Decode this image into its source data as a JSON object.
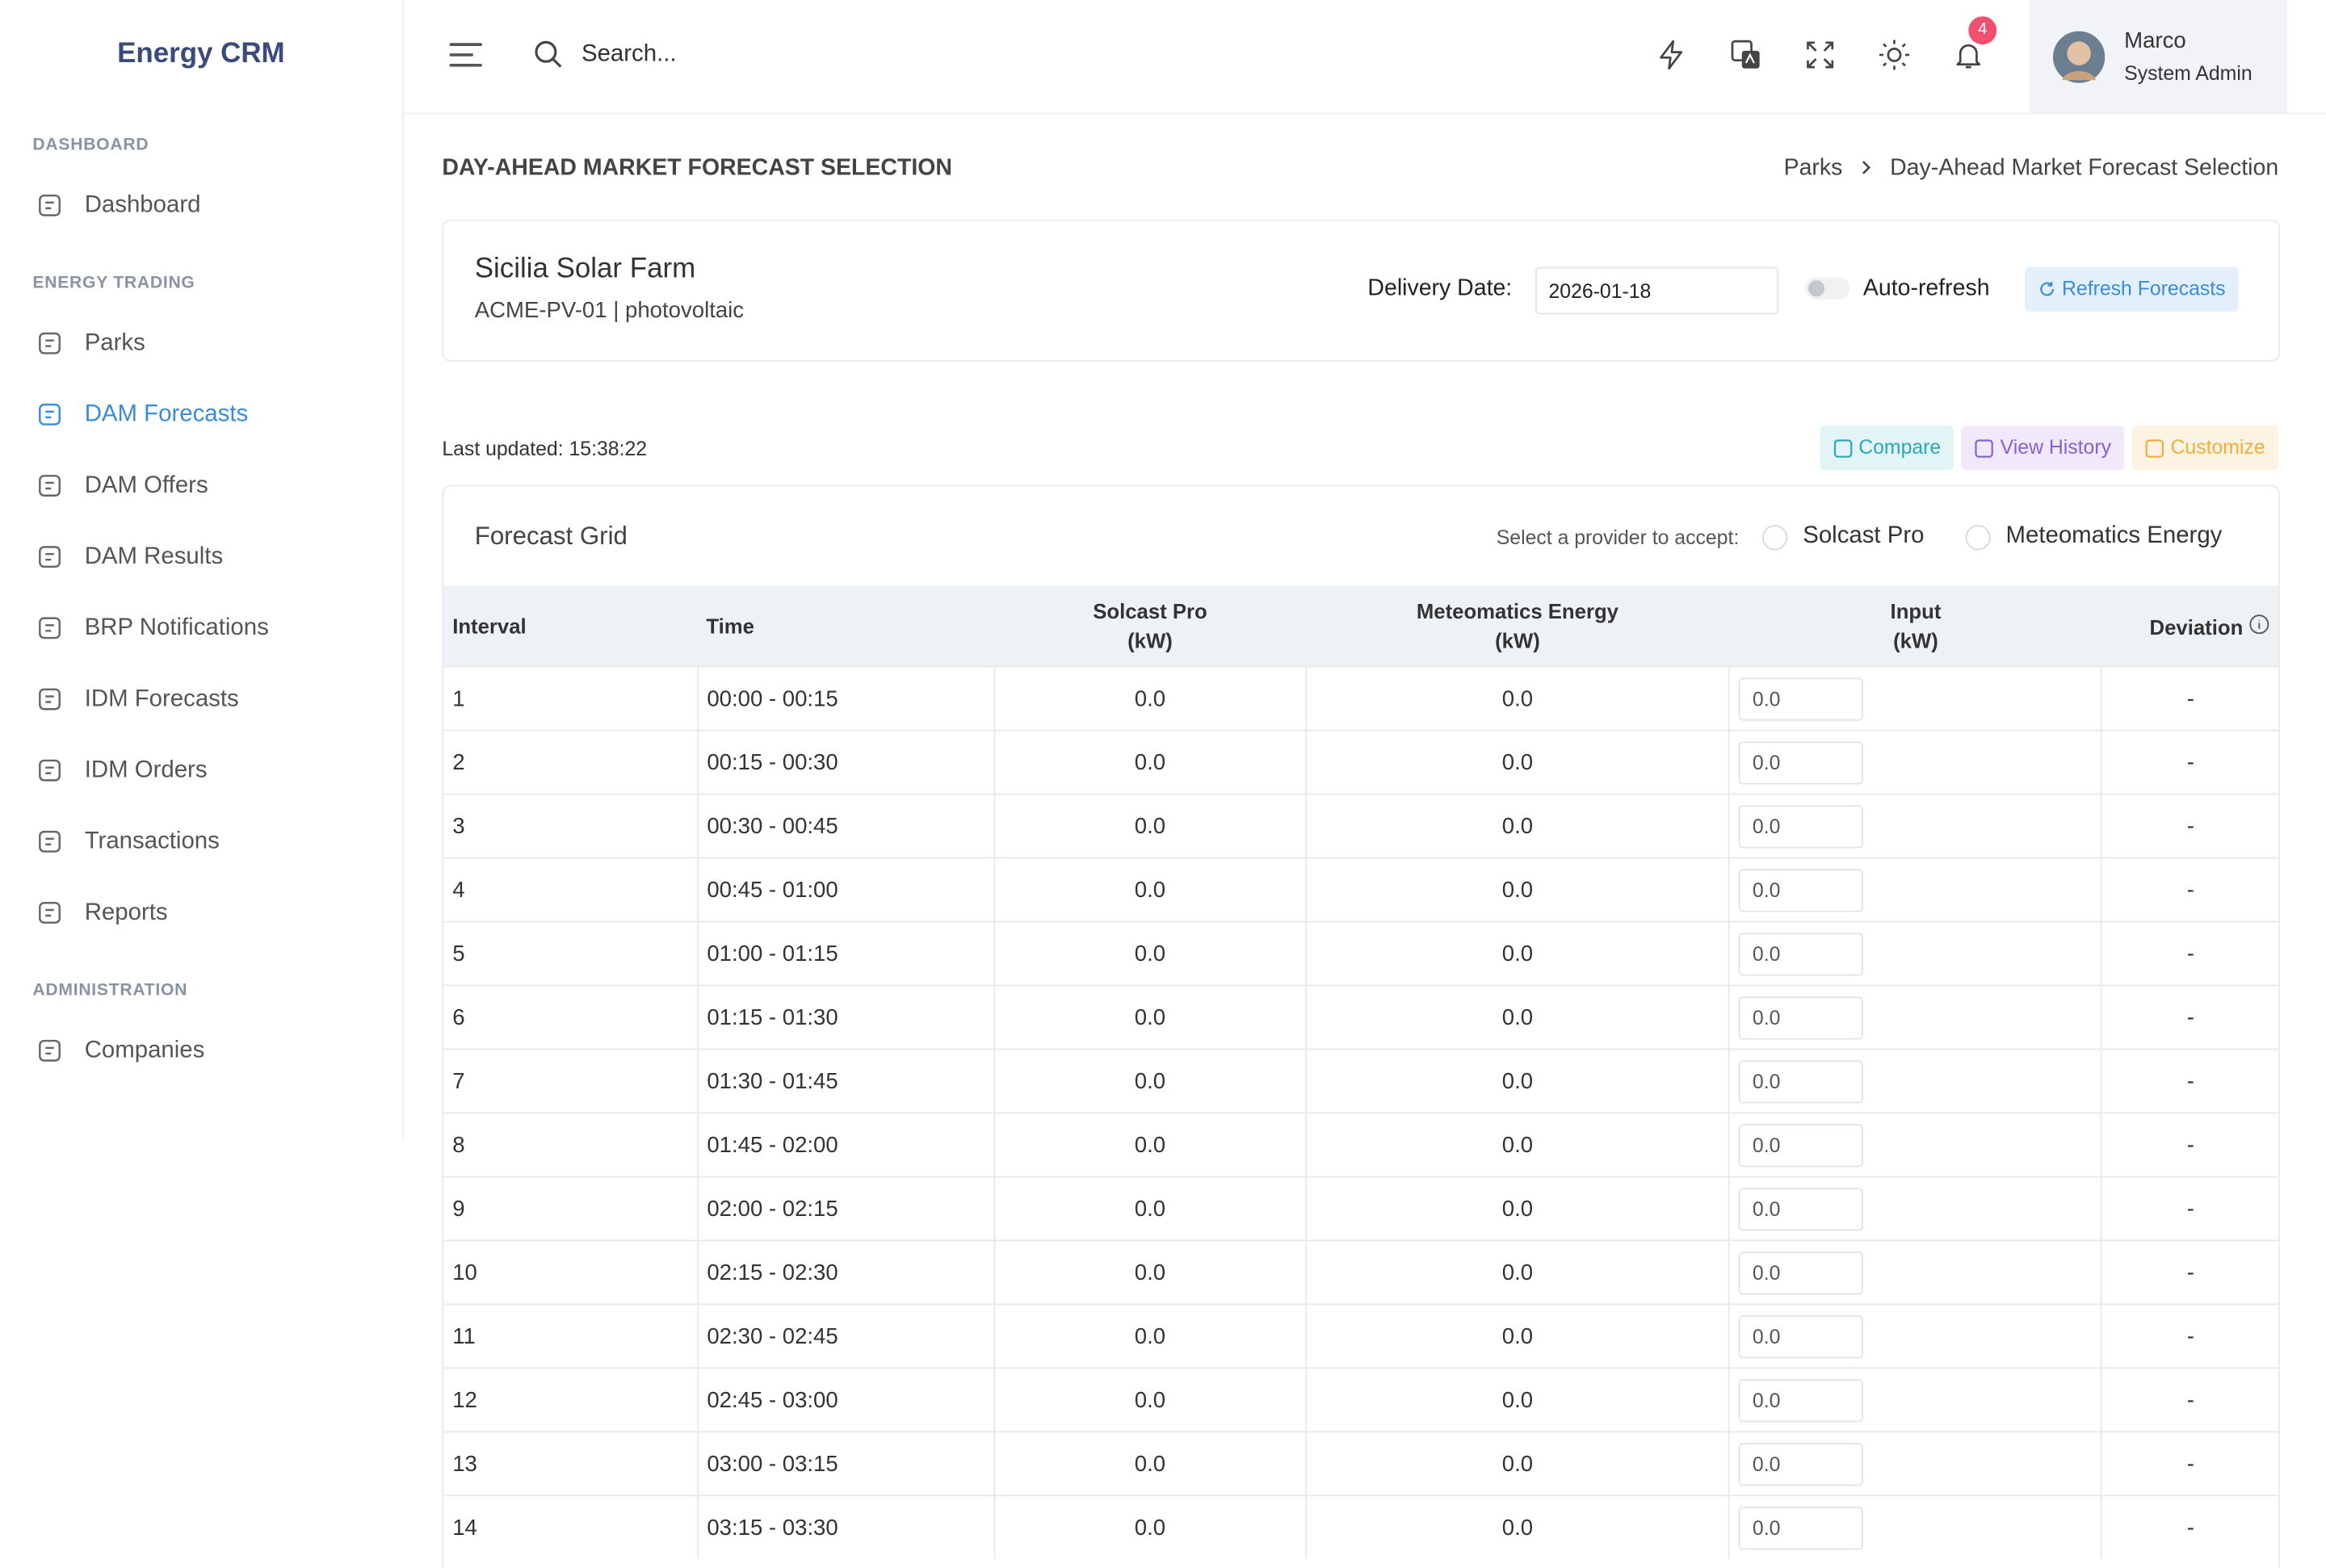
{
  "brand": "Energy CRM",
  "sidebar": {
    "sections": [
      {
        "title": "DASHBOARD",
        "items": [
          {
            "label": "Dashboard"
          }
        ]
      },
      {
        "title": "ENERGY TRADING",
        "items": [
          {
            "label": "Parks"
          },
          {
            "label": "DAM Forecasts",
            "active": true
          },
          {
            "label": "DAM Offers"
          },
          {
            "label": "DAM Results"
          },
          {
            "label": "BRP Notifications"
          },
          {
            "label": "IDM Forecasts"
          },
          {
            "label": "IDM Orders"
          },
          {
            "label": "Transactions"
          },
          {
            "label": "Reports"
          }
        ]
      },
      {
        "title": "ADMINISTRATION",
        "items": [
          {
            "label": "Companies"
          }
        ]
      }
    ]
  },
  "topbar": {
    "search_placeholder": "Search...",
    "notification_count": 4,
    "user": {
      "name": "Marco",
      "role": "System Admin"
    }
  },
  "page": {
    "title": "DAY-AHEAD MARKET FORECAST SELECTION",
    "breadcrumbs": [
      "Parks",
      "Day-Ahead Market Forecast Selection"
    ]
  },
  "park": {
    "name": "Sicilia Solar Farm",
    "subtitle": "ACME-PV-01 | photovoltaic",
    "delivery_date_label": "Delivery Date:",
    "delivery_date": "2026-01-18",
    "auto_refresh_label": "Auto-refresh",
    "refresh_button": "Refresh Forecasts"
  },
  "last_updated": "Last updated: 15:38:22",
  "actions": [
    "Compare",
    "View History",
    "Customize"
  ],
  "grid": {
    "title": "Forecast Grid",
    "provider_prompt": "Select a provider to accept:",
    "providers": [
      "Solcast Pro",
      "Meteomatics Energy"
    ],
    "columns": [
      {
        "label": "Interval"
      },
      {
        "label": "Time"
      },
      {
        "label": "Solcast Pro",
        "unit": "(kW)"
      },
      {
        "label": "Meteomatics Energy",
        "unit": "(kW)"
      },
      {
        "label": "Input",
        "unit": "(kW)"
      },
      {
        "label": "Deviation"
      }
    ],
    "rows": [
      [
        1,
        "00:00 - 00:15",
        "0.0",
        "0.0",
        "0.0",
        "-"
      ],
      [
        2,
        "00:15 - 00:30",
        "0.0",
        "0.0",
        "0.0",
        "-"
      ],
      [
        3,
        "00:30 - 00:45",
        "0.0",
        "0.0",
        "0.0",
        "-"
      ],
      [
        4,
        "00:45 - 01:00",
        "0.0",
        "0.0",
        "0.0",
        "-"
      ],
      [
        5,
        "01:00 - 01:15",
        "0.0",
        "0.0",
        "0.0",
        "-"
      ],
      [
        6,
        "01:15 - 01:30",
        "0.0",
        "0.0",
        "0.0",
        "-"
      ],
      [
        7,
        "01:30 - 01:45",
        "0.0",
        "0.0",
        "0.0",
        "-"
      ],
      [
        8,
        "01:45 - 02:00",
        "0.0",
        "0.0",
        "0.0",
        "-"
      ],
      [
        9,
        "02:00 - 02:15",
        "0.0",
        "0.0",
        "0.0",
        "-"
      ],
      [
        10,
        "02:15 - 02:30",
        "0.0",
        "0.0",
        "0.0",
        "-"
      ],
      [
        11,
        "02:30 - 02:45",
        "0.0",
        "0.0",
        "0.0",
        "-"
      ],
      [
        12,
        "02:45 - 03:00",
        "0.0",
        "0.0",
        "0.0",
        "-"
      ],
      [
        13,
        "03:00 - 03:15",
        "0.0",
        "0.0",
        "0.0",
        "-"
      ],
      [
        14,
        "03:15 - 03:30",
        "0.0",
        "0.0",
        "0.0",
        "-"
      ]
    ]
  }
}
